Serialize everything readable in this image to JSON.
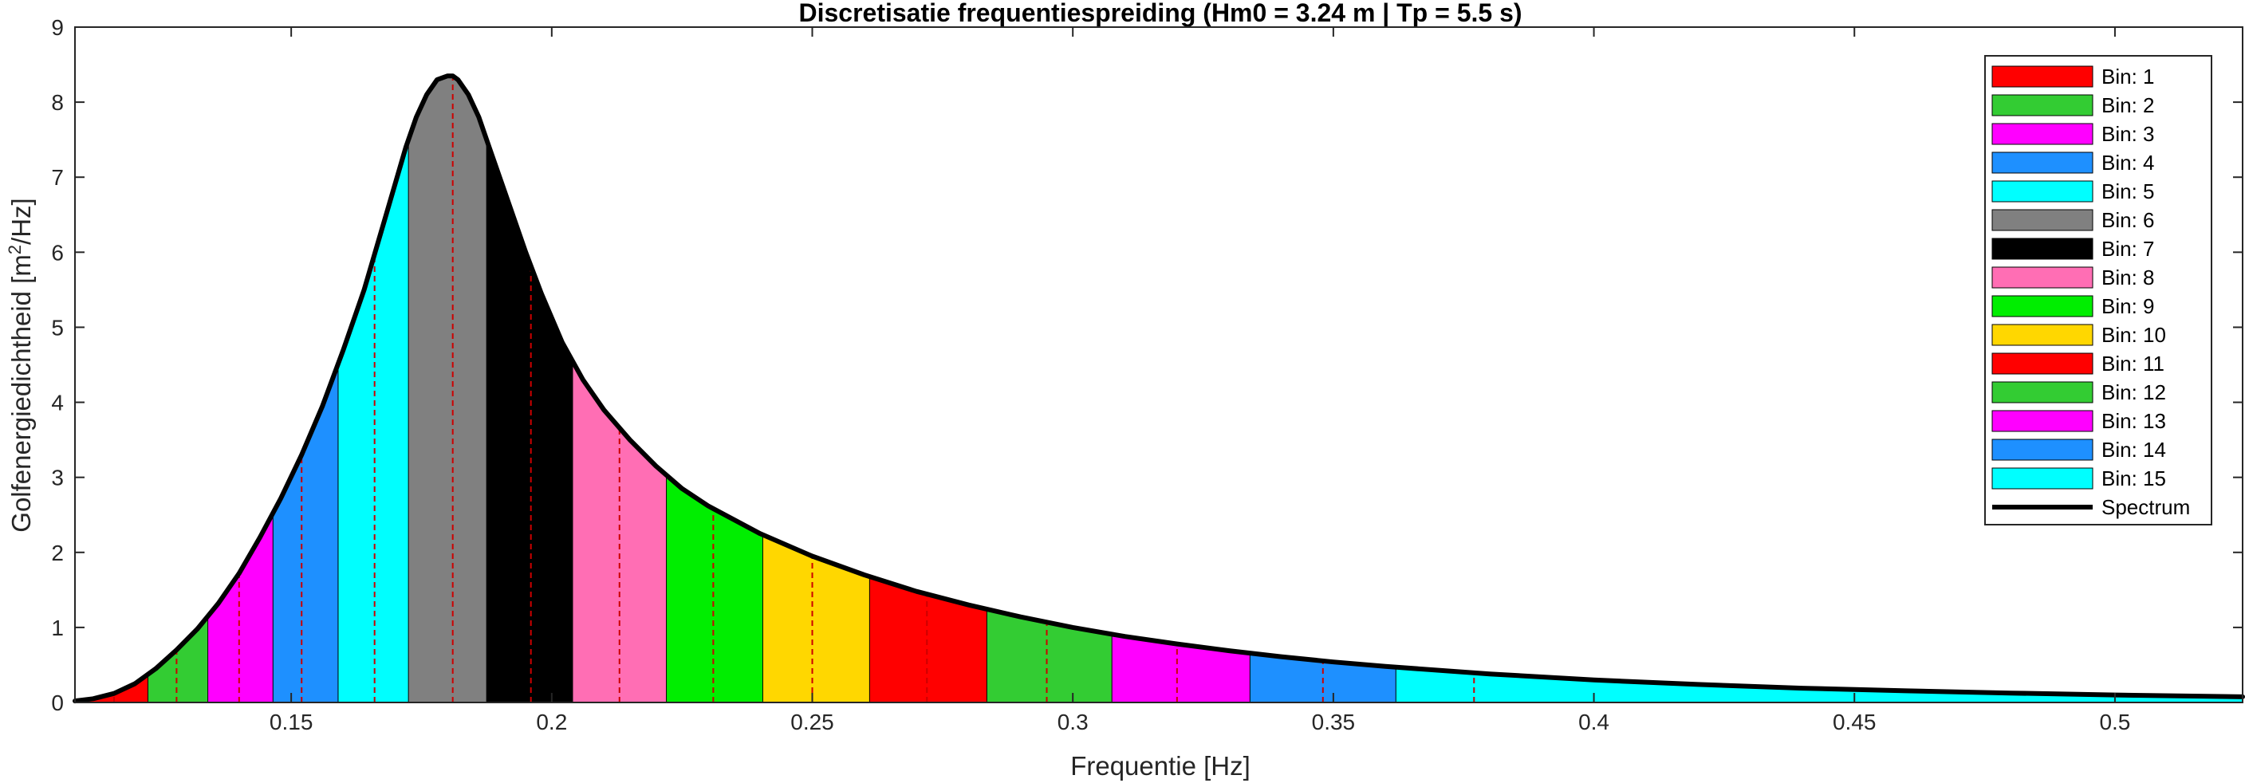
{
  "chart_data": {
    "type": "area",
    "title": "Discretisatie frequentiespreiding (Hm0 = 3.24 m | Tp = 5.5 s)",
    "xlabel": "Frequentie [Hz]",
    "ylabel_parts": [
      "Golfenergiedichtheid [m",
      "2",
      "/Hz]"
    ],
    "xlim": [
      0.1085,
      0.5245
    ],
    "ylim": [
      0,
      9
    ],
    "x_ticks": [
      0.15,
      0.2,
      0.25,
      0.3,
      0.35,
      0.4,
      0.45,
      0.5
    ],
    "x_tick_labels": [
      "0.15",
      "0.2",
      "0.25",
      "0.3",
      "0.35",
      "0.4",
      "0.45",
      "0.5"
    ],
    "y_ticks": [
      0,
      1,
      2,
      3,
      4,
      5,
      6,
      7,
      8,
      9
    ],
    "y_tick_labels": [
      "0",
      "1",
      "2",
      "3",
      "4",
      "5",
      "6",
      "7",
      "8",
      "9"
    ],
    "grid": false,
    "legend_position": "top-right",
    "spectrum": {
      "name": "Spectrum",
      "color": "#000000",
      "x": [
        0.1085,
        0.112,
        0.116,
        0.12,
        0.124,
        0.128,
        0.132,
        0.136,
        0.14,
        0.144,
        0.148,
        0.152,
        0.156,
        0.16,
        0.164,
        0.168,
        0.172,
        0.174,
        0.176,
        0.178,
        0.18,
        0.181,
        0.182,
        0.184,
        0.186,
        0.188,
        0.19,
        0.192,
        0.195,
        0.198,
        0.202,
        0.206,
        0.21,
        0.215,
        0.22,
        0.225,
        0.23,
        0.24,
        0.25,
        0.26,
        0.27,
        0.28,
        0.29,
        0.3,
        0.31,
        0.32,
        0.33,
        0.34,
        0.35,
        0.36,
        0.38,
        0.4,
        0.42,
        0.44,
        0.46,
        0.48,
        0.5,
        0.5245
      ],
      "y": [
        0.02,
        0.05,
        0.12,
        0.25,
        0.45,
        0.7,
        0.98,
        1.32,
        1.72,
        2.2,
        2.72,
        3.3,
        3.95,
        4.7,
        5.5,
        6.45,
        7.4,
        7.8,
        8.1,
        8.3,
        8.35,
        8.35,
        8.3,
        8.1,
        7.8,
        7.4,
        7.0,
        6.6,
        6.0,
        5.45,
        4.8,
        4.3,
        3.9,
        3.5,
        3.15,
        2.85,
        2.62,
        2.25,
        1.95,
        1.7,
        1.48,
        1.3,
        1.14,
        1.0,
        0.88,
        0.78,
        0.69,
        0.61,
        0.54,
        0.48,
        0.38,
        0.3,
        0.24,
        0.19,
        0.155,
        0.125,
        0.1,
        0.075
      ]
    },
    "bin_edges": [
      0.1085,
      0.1225,
      0.134,
      0.1465,
      0.159,
      0.1725,
      0.1875,
      0.204,
      0.222,
      0.2405,
      0.261,
      0.2835,
      0.3075,
      0.334,
      0.362,
      0.5245
    ],
    "bin_centers": [
      0.116,
      0.128,
      0.14,
      0.152,
      0.166,
      0.181,
      0.196,
      0.213,
      0.231,
      0.25,
      0.272,
      0.295,
      0.32,
      0.348,
      0.377
    ],
    "series": [
      {
        "name": "Bin: 1",
        "color": "#FF0000"
      },
      {
        "name": "Bin: 2",
        "color": "#33CC33"
      },
      {
        "name": "Bin: 3",
        "color": "#FF00FF"
      },
      {
        "name": "Bin: 4",
        "color": "#1E90FF"
      },
      {
        "name": "Bin: 5",
        "color": "#00FFFF"
      },
      {
        "name": "Bin: 6",
        "color": "#808080"
      },
      {
        "name": "Bin: 7",
        "color": "#000000"
      },
      {
        "name": "Bin: 8",
        "color": "#FF6EB4"
      },
      {
        "name": "Bin: 9",
        "color": "#00EE00"
      },
      {
        "name": "Bin: 10",
        "color": "#FFD700"
      },
      {
        "name": "Bin: 11",
        "color": "#FF0000"
      },
      {
        "name": "Bin: 12",
        "color": "#33CC33"
      },
      {
        "name": "Bin: 13",
        "color": "#FF00FF"
      },
      {
        "name": "Bin: 14",
        "color": "#1E90FF"
      },
      {
        "name": "Bin: 15",
        "color": "#00FFFF"
      }
    ],
    "center_line_color": "#CC0000"
  }
}
